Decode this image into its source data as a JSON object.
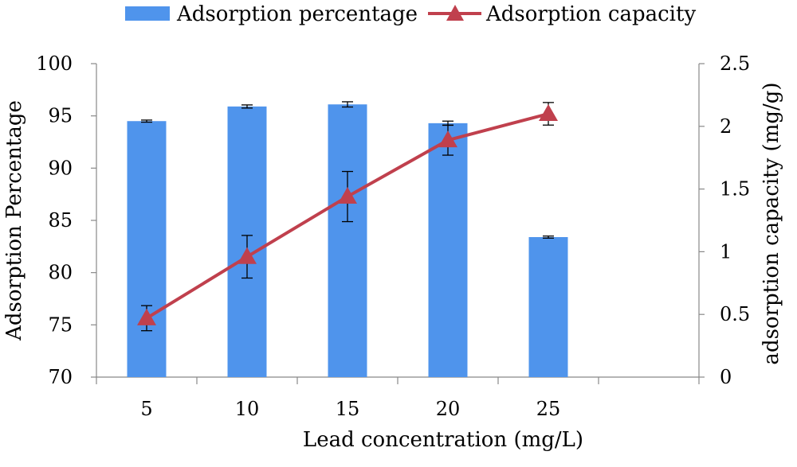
{
  "chart_data": {
    "type": "bar",
    "categories": [
      "5",
      "10",
      "15",
      "20",
      "25"
    ],
    "xlabel": "Lead concentration (mg/L)",
    "ylabel": "Adsorption Percentage",
    "y2label": "adsorption capacity (mg/g)",
    "ylim": [
      70,
      100
    ],
    "y2lim": [
      0,
      2.5
    ],
    "yticks": [
      "70",
      "75",
      "80",
      "85",
      "90",
      "95",
      "100"
    ],
    "y2ticks": [
      "0",
      "0.5",
      "1",
      "1.5",
      "2",
      "2.5"
    ],
    "grid": false,
    "legend": "top-center",
    "series": [
      {
        "name": "Adsorption percentage",
        "type": "bar",
        "axis": "left",
        "color": "#4f94ec",
        "values": [
          94.5,
          95.9,
          96.1,
          94.3,
          83.4
        ],
        "errors": [
          0.1,
          0.15,
          0.25,
          0.2,
          0.1
        ]
      },
      {
        "name": "Adsorption capacity",
        "type": "line",
        "marker": "triangle",
        "axis": "right",
        "color": "#c0404d",
        "values": [
          0.47,
          0.96,
          1.44,
          1.89,
          2.1
        ],
        "errors": [
          0.1,
          0.17,
          0.2,
          0.12,
          0.09
        ]
      }
    ]
  }
}
